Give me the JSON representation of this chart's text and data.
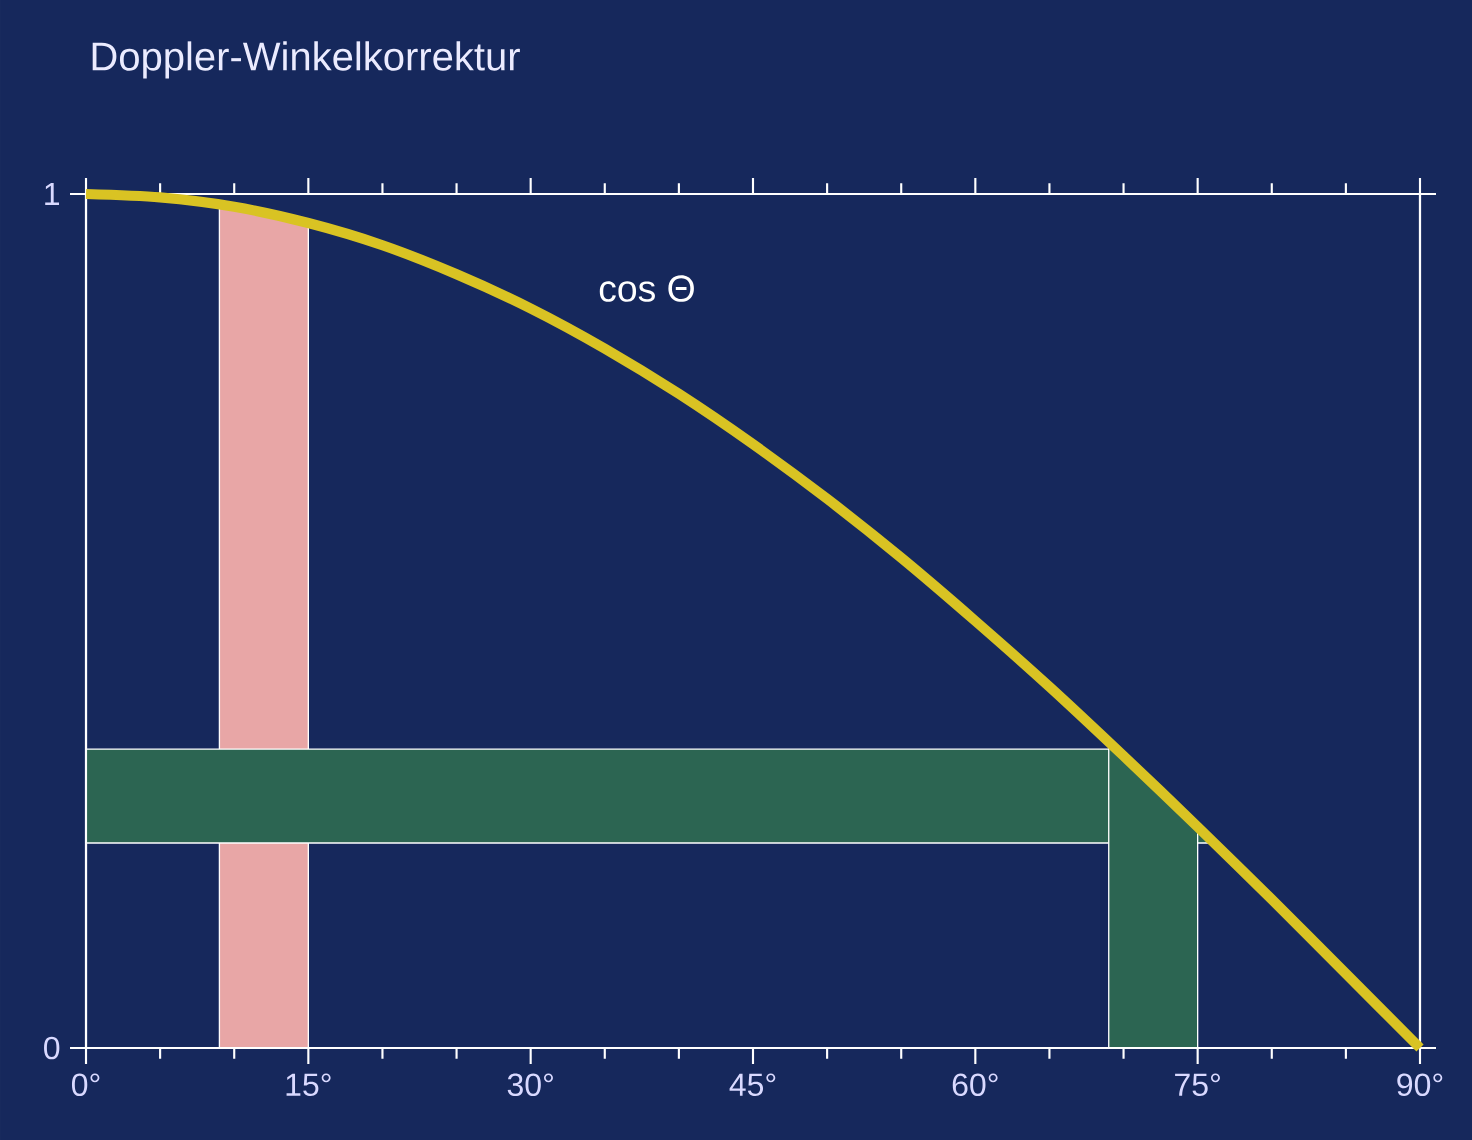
{
  "chart_data": {
    "type": "line",
    "title": "Doppler-Winkelkorrektur",
    "x": [
      0,
      5,
      10,
      15,
      20,
      25,
      30,
      35,
      40,
      45,
      50,
      55,
      60,
      65,
      70,
      75,
      80,
      85,
      90
    ],
    "series": [
      {
        "name": "cos Θ",
        "color": "#d9c323",
        "values": [
          1,
          0.996,
          0.985,
          0.966,
          0.94,
          0.906,
          0.866,
          0.819,
          0.766,
          0.707,
          0.643,
          0.574,
          0.5,
          0.423,
          0.342,
          0.259,
          0.174,
          0.087,
          0
        ]
      }
    ],
    "xlim": [
      0,
      90
    ],
    "ylim": [
      0,
      1
    ],
    "xticks": [
      {
        "value": 0,
        "label": "0°"
      },
      {
        "value": 15,
        "label": "15°"
      },
      {
        "value": 30,
        "label": "30°"
      },
      {
        "value": 45,
        "label": "45°"
      },
      {
        "value": 60,
        "label": "60°"
      },
      {
        "value": 75,
        "label": "75°"
      },
      {
        "value": 90,
        "label": "90°"
      }
    ],
    "yticks": [
      0,
      1
    ],
    "bands": [
      {
        "axis": "x",
        "from": 9,
        "to": 15,
        "color": "#e8a6a6"
      },
      {
        "axis": "y",
        "from": 0.24,
        "to": 0.35,
        "color": "#2c6552"
      },
      {
        "axis": "x",
        "from": 69,
        "to": 75,
        "color": "#2c6552"
      }
    ],
    "grid": false,
    "legend": false,
    "marker": "none",
    "line_style": "solid"
  }
}
